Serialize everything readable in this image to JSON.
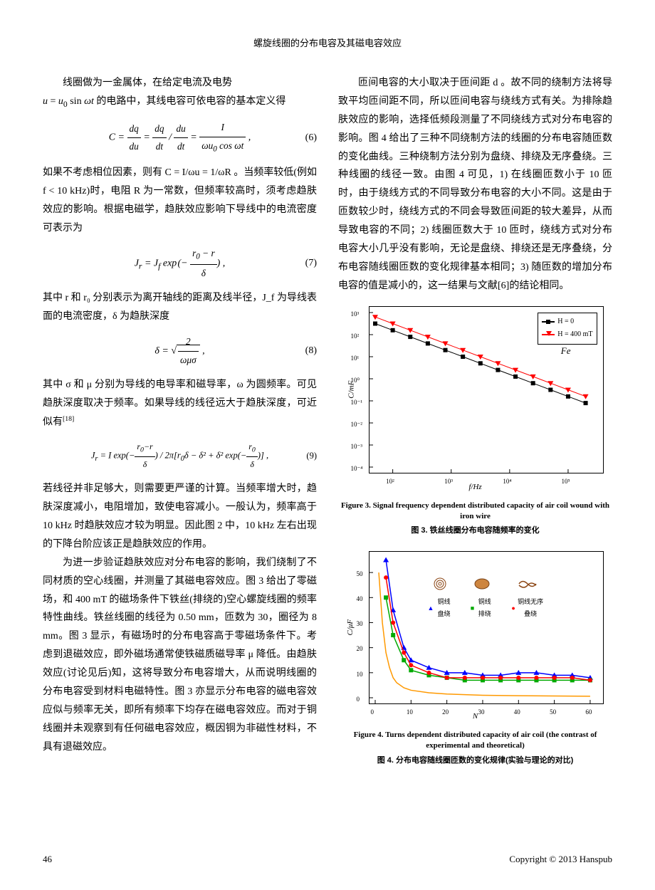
{
  "header": {
    "title": "螺旋线圈的分布电容及其磁电容效应"
  },
  "left_column": {
    "p1_lead": "线圈做为一金属体，在给定电流及电势",
    "p1_rest": "u = u₀ sin ωt 的电路中，其线电容可依电容的基本定义得",
    "eq6": "C = dq/du = (dq/dt)/(du/dt) = I/(ωu₀ cos ωt) ,",
    "eq6_num": "(6)",
    "p2": "如果不考虑相位因素，则有 C = I/ωu = 1/ωR 。当频率较低(例如 f < 10 kHz)时，电阻 R 为一常数，但频率较高时，须考虑趋肤效应的影响。根据电磁学，趋肤效应影响下导线中的电流密度可表示为",
    "eq7": "Jᵣ = J_f exp(−(r₀−r)/δ) ,",
    "eq7_num": "(7)",
    "p3": "其中 r 和 r₀ 分别表示为离开轴线的距离及线半径，J_f 为导线表面的电流密度，δ 为趋肤深度",
    "eq8": "δ = √(2/(ωμσ)) ,",
    "eq8_num": "(8)",
    "p4": "其中 σ 和 μ 分别为导线的电导率和磁导率，ω 为圆频率。可见趋肤深度取决于频率。如果导线的线径远大于趋肤深度，可近似有",
    "p4_ref": "[18]",
    "eq9": "Jᵣ = I exp(−(r₀−r)/δ) / 2π[r₀δ − δ² + δ² exp(−r₀/δ)] ,",
    "eq9_num": "(9)",
    "p5": "若线径并非足够大，则需要更严谨的计算。当频率增大时，趋肤深度减小，电阻增加，致使电容减小。一般认为，频率高于 10 kHz 时趋肤效应才较为明显。因此图 2 中，10 kHz 左右出现的下降台阶应该正是趋肤效应的作用。",
    "p6": "为进一步验证趋肤效应对分布电容的影响，我们绕制了不同材质的空心线圈，并测量了其磁电容效应。图 3 给出了零磁场，和 400 mT 的磁场条件下铁丝(排绕的)空心螺旋线圈的频率特性曲线。铁丝线圈的线径为 0.50 mm，匝数为 30，圈径为 8 mm。图 3 显示，有磁场时的分布电容高于零磁场条件下。考虑到退磁效应，即外磁场通常使铁磁质磁导率 μ 降低。由趋肤效应(讨论见后)知，这将导致分布电容增大，从而说明线圈的分布电容受到材料电磁特性。图 3 亦显示分布电容的磁电容效应似与频率无关，即所有频率下均存在磁电容效应。而对于铜线圈并未观察到有任何磁电容效应，概因铜为非磁性材料，不具有退磁效应。"
  },
  "right_column": {
    "p1": "匝间电容的大小取决于匝间距 d 。故不同的绕制方法将导致平均匝间距不同，所以匝间电容与绕线方式有关。为排除趋肤效应的影响，选择低频段测量了不同绕线方式对分布电容的影响。图 4 给出了三种不同绕制方法的线圈的分布电容随匝数的变化曲线。三种绕制方法分别为盘绕、排绕及无序叠绕。三种线圈的线径一致。由图 4 可见，1) 在线圈匝数小于 10 匝时，由于绕线方式的不同导致分布电容的大小不同。这是由于匝数较少时，绕线方式的不同会导致匝间距的较大差异，从而导致电容的不同；2) 线圈匝数大于 10 匝时，绕线方式对分布电容大小几乎没有影响，无论是盘绕、排绕还是无序叠绕，分布电容随线圈匝数的变化规律基本相同；3) 随匝数的增加分布电容的值是减小的，这一结果与文献[6]的结论相同。"
  },
  "figure3": {
    "legend_items": [
      "H = 0",
      "H = 400 mT"
    ],
    "legend_colors": [
      "#000000",
      "#ff0000"
    ],
    "legend_markers": [
      "square",
      "triangle"
    ],
    "annotation": "Fe",
    "annotation_style": "italic",
    "ylabel": "C/mF",
    "xlabel": "f/Hz",
    "x_ticks": [
      "10²",
      "10³",
      "10⁴",
      "10⁵"
    ],
    "y_ticks": [
      "10⁻⁴",
      "10⁻³",
      "10⁻²",
      "10⁻¹",
      "10⁰",
      "10¹",
      "10²",
      "10³"
    ],
    "scale": "log-log",
    "background_color": "#ffffff",
    "grid_color": "#000000",
    "series": [
      {
        "name": "H=0",
        "color": "#000000",
        "marker": "square",
        "x_log": [
          1.7,
          2,
          2.3,
          2.6,
          2.9,
          3.2,
          3.5,
          3.8,
          4.1,
          4.4,
          4.7,
          5,
          5.3
        ],
        "y_log": [
          2.5,
          2.2,
          1.9,
          1.6,
          1.3,
          1.0,
          0.7,
          0.4,
          0.1,
          -0.2,
          -0.5,
          -0.8,
          -1.1
        ]
      },
      {
        "name": "H=400mT",
        "color": "#ff0000",
        "marker": "triangle",
        "x_log": [
          1.7,
          2,
          2.3,
          2.6,
          2.9,
          3.2,
          3.5,
          3.8,
          4.1,
          4.4,
          4.7,
          5,
          5.3
        ],
        "y_log": [
          2.8,
          2.5,
          2.2,
          1.9,
          1.6,
          1.3,
          1.0,
          0.7,
          0.4,
          0.1,
          -0.2,
          -0.5,
          -0.8
        ]
      }
    ],
    "caption_en": "Figure 3. Signal frequency dependent distributed capacity of air coil wound with iron wire",
    "caption_cn": "图 3. 铁丝线圈分布电容随频率的变化"
  },
  "figure4": {
    "ylabel": "C/μF",
    "xlabel": "N",
    "x_ticks": [
      "0",
      "10",
      "20",
      "30",
      "40",
      "50",
      "60"
    ],
    "y_ticks": [
      "0",
      "10",
      "20",
      "30",
      "40",
      "50"
    ],
    "legend_items": [
      "铜线盘绕",
      "铜线排绕",
      "铜线无序叠绕"
    ],
    "legend_colors": [
      "#0000ff",
      "#00aa00",
      "#ff0000"
    ],
    "legend_markers": [
      "triangle",
      "square",
      "circle"
    ],
    "theory_line_color": "#ff9900",
    "background_color": "#ffffff",
    "series": [
      {
        "name": "theory",
        "color": "#ff9900",
        "marker": "none",
        "x": [
          1,
          2,
          3,
          4,
          5,
          6,
          8,
          10,
          15,
          20,
          30,
          40,
          50,
          60
        ],
        "y": [
          50,
          30,
          18,
          12,
          8,
          6,
          4,
          3,
          2,
          1.5,
          1,
          0.8,
          0.7,
          0.6
        ]
      },
      {
        "name": "盘绕",
        "color": "#0000ff",
        "marker": "triangle",
        "x": [
          3,
          5,
          8,
          10,
          15,
          20,
          25,
          30,
          35,
          40,
          45,
          50,
          55,
          60
        ],
        "y": [
          55,
          35,
          20,
          15,
          12,
          10,
          10,
          9,
          9,
          10,
          10,
          9,
          9,
          8
        ]
      },
      {
        "name": "排绕",
        "color": "#00aa00",
        "marker": "square",
        "x": [
          3,
          5,
          8,
          10,
          15,
          20,
          25,
          30,
          35,
          40,
          45,
          50,
          55,
          60
        ],
        "y": [
          40,
          25,
          15,
          11,
          9,
          8,
          7,
          7,
          7,
          7,
          7,
          7,
          7,
          7
        ]
      },
      {
        "name": "叠绕",
        "color": "#ff0000",
        "marker": "circle",
        "x": [
          3,
          5,
          8,
          10,
          15,
          20,
          25,
          30,
          35,
          40,
          45,
          50,
          55,
          60
        ],
        "y": [
          48,
          30,
          18,
          13,
          10,
          8,
          8,
          8,
          8,
          8,
          8,
          8,
          8,
          7
        ]
      }
    ],
    "caption_en": "Figure 4. Turns dependent distributed capacity of air coil (the contrast of experimental and theoretical)",
    "caption_cn": "图 4. 分布电容随线圈匝数的变化规律(实验与理论的对比)"
  },
  "footer": {
    "page": "46",
    "copyright": "Copyright © 2013 Hanspub"
  }
}
